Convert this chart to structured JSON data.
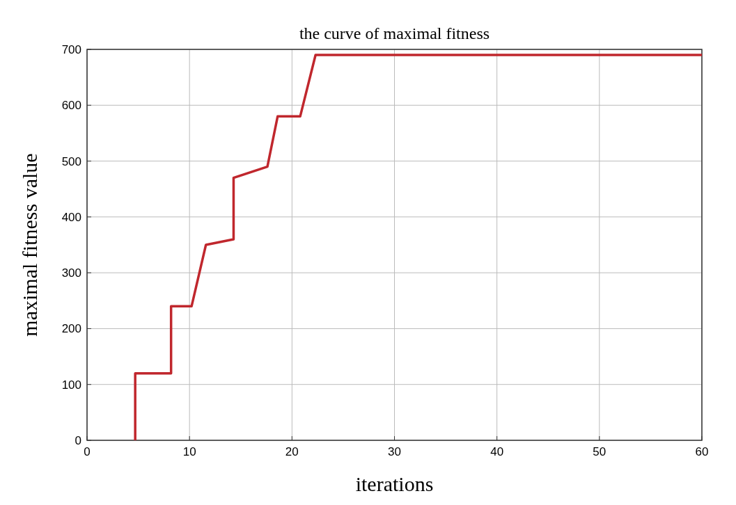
{
  "chart_data": {
    "type": "line",
    "title": "the curve of maximal fitness",
    "xlabel": "iterations",
    "ylabel": "maximal fitness value",
    "series": [
      {
        "color": "#c0272d",
        "x": [
          4.7,
          4.7,
          8.2,
          8.2,
          10.2,
          11.6,
          14.3,
          14.3,
          17.6,
          18.6,
          20.8,
          22.3,
          60
        ],
        "values": [
          0,
          120,
          120,
          240,
          240,
          350,
          360,
          470,
          490,
          580,
          580,
          690,
          690
        ]
      }
    ],
    "xlim": [
      0,
      60
    ],
    "xticks": [
      0,
      10,
      20,
      30,
      40,
      50,
      60
    ],
    "ylim": [
      0,
      700
    ],
    "yticks": [
      0,
      100,
      200,
      300,
      400,
      500,
      600,
      700
    ],
    "grid": true,
    "marker": "none",
    "line_style": "solid"
  }
}
